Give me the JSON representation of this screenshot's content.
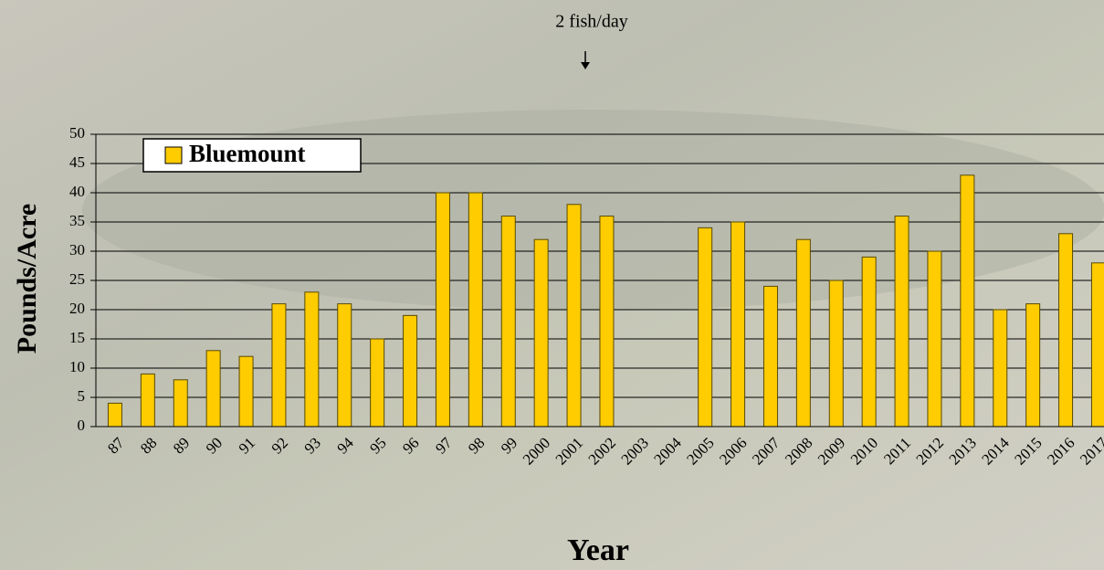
{
  "chart_data": {
    "type": "bar",
    "annotation": "2 fish/day",
    "y_label": "Pounds/Acre",
    "x_label": "Year",
    "categories": [
      "87",
      "88",
      "89",
      "90",
      "91",
      "92",
      "93",
      "94",
      "95",
      "96",
      "97",
      "98",
      "99",
      "2000",
      "2001",
      "2002",
      "2003",
      "2004",
      "2005",
      "2006",
      "2007",
      "2008",
      "2009",
      "2010",
      "2011",
      "2012",
      "2013",
      "2014",
      "2015",
      "2016",
      "2017"
    ],
    "series": [
      {
        "name": "Bluemount",
        "color": "#ffcc00",
        "values": [
          4,
          9,
          8,
          13,
          12,
          21,
          23,
          21,
          15,
          19,
          40,
          40,
          36,
          32,
          38,
          36,
          null,
          null,
          34,
          35,
          24,
          32,
          25,
          29,
          36,
          30,
          43,
          20,
          21,
          33,
          28
        ]
      }
    ],
    "ylim": [
      0,
      50
    ],
    "yticks": [
      0,
      5,
      10,
      15,
      20,
      25,
      30,
      35,
      40,
      45,
      50
    ],
    "grid": true,
    "legend": "upper left"
  }
}
